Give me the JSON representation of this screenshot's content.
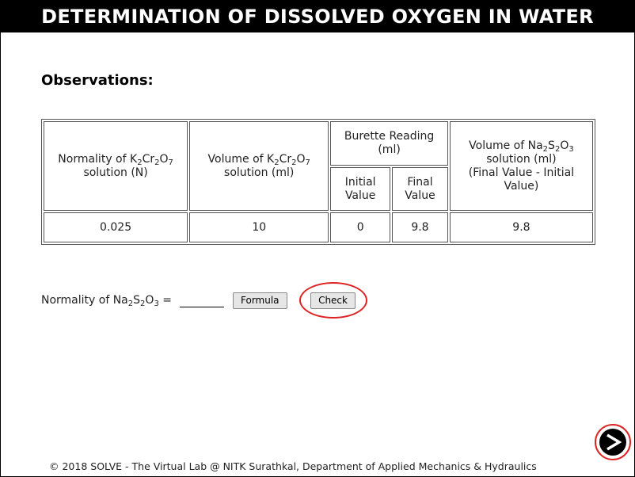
{
  "title": "DETERMINATION OF DISSOLVED OXYGEN IN WATER",
  "heading": "Observations:",
  "table": {
    "headers": {
      "col1_prefix": "Normality of K",
      "col1_sub1": "2",
      "col1_mid1": "Cr",
      "col1_sub2": "2",
      "col1_mid2": "O",
      "col1_sub3": "7",
      "col1_suffix": "solution (N)",
      "col2_prefix": "Volume of K",
      "col2_sub1": "2",
      "col2_mid1": "Cr",
      "col2_sub2": "2",
      "col2_mid2": "O",
      "col2_sub3": "7",
      "col2_suffix": "solution (ml)",
      "burette_line1": "Burette Reading",
      "burette_line2": "(ml)",
      "initial_line1": "Initial",
      "initial_line2": "Value",
      "final_line1": "Final",
      "final_line2": "Value",
      "col5_prefix": "Volume of Na",
      "col5_sub1": "2",
      "col5_mid1": "S",
      "col5_sub2": "2",
      "col5_mid2": "O",
      "col5_sub3": "3",
      "col5_line2": "solution (ml)",
      "col5_line3": "(Final Value - Initial",
      "col5_line4": "Value)"
    },
    "row": {
      "normality": "0.025",
      "volume": "10",
      "initial": "0",
      "final": "9.8",
      "difference": "9.8"
    }
  },
  "formula_row": {
    "label_prefix": "Normality of Na",
    "label_sub1": "2",
    "label_mid1": "S",
    "label_sub2": "2",
    "label_mid2": "O",
    "label_sub3": "3",
    "label_suffix": " =",
    "input_value": "",
    "formula_label": "Formula",
    "check_label": "Check"
  },
  "next_icon": "next-arrow-icon",
  "highlight_color": "#dd2222",
  "footer": "© 2018 SOLVE - The Virtual Lab @ NITK Surathkal, Department of Applied Mechanics & Hydraulics"
}
